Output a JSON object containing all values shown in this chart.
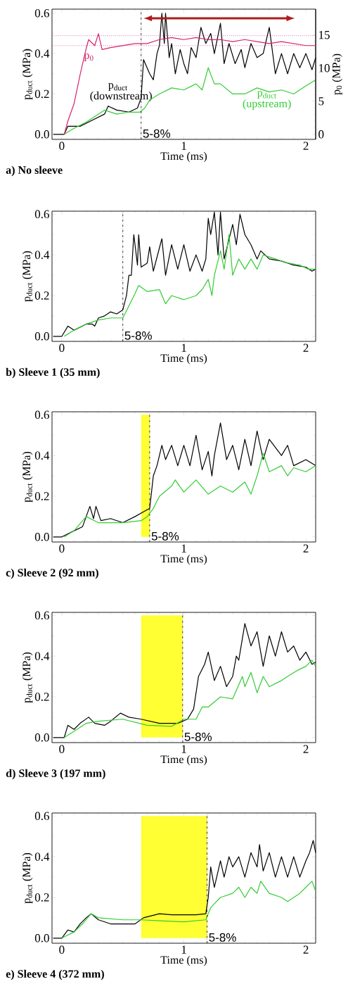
{
  "chart_data": [
    {
      "type": "line",
      "title": "a) No sleeve",
      "xlabel": "Time (ms)",
      "ylabel": "p$_{duct}$ (MPa)",
      "y2label": "p$_{0}$ (MPa)",
      "xlim": [
        -0.08,
        2.08
      ],
      "ylim": [
        -0.025,
        0.62
      ],
      "y2lim": [
        -0.76,
        18.9
      ],
      "xticks": [
        0,
        1,
        2
      ],
      "yticks": [
        {
          "value": 0,
          "label": "0.0"
        },
        {
          "value": 0.2,
          "label": "0.2"
        },
        {
          "value": 0.4,
          "label": "0.4"
        },
        {
          "value": 0.6,
          "label": "0.6"
        }
      ],
      "y2ticks": [
        0,
        5,
        10,
        15
      ],
      "series": [
        {
          "name": "p$_{duct}$ (downstream)",
          "color": "#000000",
          "x": [
            -0.07,
            0.02,
            0.05,
            0.15,
            0.25,
            0.35,
            0.38,
            0.45,
            0.55,
            0.62,
            0.65,
            0.67,
            0.72,
            0.75,
            0.78,
            0.8,
            0.82,
            0.84,
            0.85,
            0.88,
            0.9,
            0.93,
            0.97,
            1.0,
            1.03,
            1.06,
            1.1,
            1.14,
            1.18,
            1.22,
            1.25,
            1.3,
            1.33,
            1.37,
            1.42,
            1.47,
            1.5,
            1.55,
            1.6,
            1.65,
            1.7,
            1.75,
            1.8,
            1.85,
            1.9,
            1.95,
            2.0,
            2.05,
            2.08
          ],
          "values": [
            0,
            0,
            0.04,
            0.04,
            0.07,
            0.1,
            0.14,
            0.12,
            0.11,
            0.13,
            0.18,
            0.37,
            0.3,
            0.27,
            0.4,
            0.44,
            0.6,
            0.45,
            0.6,
            0.38,
            0.45,
            0.3,
            0.42,
            0.35,
            0.3,
            0.43,
            0.38,
            0.53,
            0.45,
            0.5,
            0.4,
            0.55,
            0.35,
            0.45,
            0.35,
            0.42,
            0.33,
            0.45,
            0.38,
            0.4,
            0.53,
            0.3,
            0.4,
            0.3,
            0.4,
            0.33,
            0.4,
            0.32,
            0.38
          ]
        },
        {
          "name": "p$_{duct}$ (upstream)",
          "color": "#33cc33",
          "x": [
            0.02,
            0.1,
            0.2,
            0.3,
            0.35,
            0.45,
            0.55,
            0.64,
            0.68,
            0.72,
            0.8,
            0.9,
            1.0,
            1.1,
            1.15,
            1.2,
            1.25,
            1.3,
            1.4,
            1.5,
            1.6,
            1.7,
            1.8,
            1.9,
            2.0,
            2.08
          ],
          "values": [
            0,
            0.03,
            0.06,
            0.1,
            0.12,
            0.1,
            0.11,
            0.11,
            0.13,
            0.17,
            0.2,
            0.23,
            0.22,
            0.25,
            0.22,
            0.33,
            0.25,
            0.25,
            0.2,
            0.2,
            0.23,
            0.21,
            0.22,
            0.2,
            0.24,
            0.27
          ]
        },
        {
          "name": "p$_{0}$",
          "color": "#d6246e",
          "axis": "y2",
          "x": [
            0.02,
            0.05,
            0.1,
            0.15,
            0.2,
            0.22,
            0.27,
            0.3,
            0.33,
            0.4,
            0.5,
            0.6,
            0.7,
            0.8,
            0.9,
            1.0,
            1.1,
            1.2,
            1.3,
            1.4,
            1.5,
            1.6,
            1.7,
            1.8,
            1.9,
            2.0,
            2.08
          ],
          "values": [
            0,
            2,
            4.6,
            9,
            13,
            14.3,
            13.4,
            15.2,
            12.8,
            13.1,
            13.4,
            13.7,
            13.7,
            14.3,
            14.6,
            14.3,
            14.6,
            14.3,
            14.3,
            14,
            14.3,
            14,
            13.7,
            14,
            13.7,
            13.4,
            13.4
          ]
        }
      ],
      "ref_lines": [
        {
          "axis": "x",
          "value": 0.65,
          "line_style": "dashdot",
          "color": "#000000"
        },
        {
          "axis": "y2",
          "value": 14.9,
          "line_style": "dotted",
          "color": "#d6246e"
        },
        {
          "axis": "y2",
          "value": 13.4,
          "line_style": "dotted",
          "color": "#d6246e"
        }
      ],
      "annotations": [
        "5-8%"
      ]
    },
    {
      "type": "line",
      "title": "b) Sleeve 1 (35 mm)",
      "xlabel": "Time (ms)",
      "ylabel": "p$_{duct}$ (MPa)",
      "xlim": [
        -0.08,
        2.08
      ],
      "ylim": [
        -0.025,
        0.615
      ],
      "xticks": [
        0,
        1,
        2
      ],
      "yticks": [
        {
          "value": 0,
          "label": "0.0"
        },
        {
          "value": 0.2,
          "label": "0.2"
        },
        {
          "value": 0.4,
          "label": "0.4"
        },
        {
          "value": 0.6,
          "label": "0.6"
        }
      ],
      "series": [
        {
          "color": "#000000",
          "x": [
            -0.07,
            0.0,
            0.05,
            0.1,
            0.2,
            0.25,
            0.27,
            0.3,
            0.35,
            0.4,
            0.45,
            0.5,
            0.53,
            0.55,
            0.57,
            0.59,
            0.62,
            0.63,
            0.65,
            0.7,
            0.72,
            0.75,
            0.82,
            0.85,
            0.9,
            0.95,
            1.0,
            1.05,
            1.1,
            1.15,
            1.18,
            1.2,
            1.22,
            1.25,
            1.28,
            1.3,
            1.33,
            1.4,
            1.43,
            1.46,
            1.5,
            1.55,
            1.6,
            1.63,
            1.7,
            1.8,
            1.9,
            2.0,
            2.05,
            2.08
          ],
          "values": [
            0,
            0,
            0.05,
            0.03,
            0.06,
            0.06,
            0.05,
            0.09,
            0.1,
            0.12,
            0.11,
            0.13,
            0.2,
            0.3,
            0.3,
            0.5,
            0.35,
            0.5,
            0.34,
            0.36,
            0.44,
            0.32,
            0.48,
            0.3,
            0.45,
            0.33,
            0.45,
            0.32,
            0.4,
            0.32,
            0.38,
            0.58,
            0.5,
            0.61,
            0.4,
            0.61,
            0.38,
            0.55,
            0.45,
            0.6,
            0.5,
            0.45,
            0.38,
            0.42,
            0.38,
            0.37,
            0.35,
            0.34,
            0.32,
            0.33
          ]
        },
        {
          "color": "#33cc33",
          "x": [
            0.02,
            0.1,
            0.2,
            0.3,
            0.4,
            0.5,
            0.55,
            0.6,
            0.63,
            0.7,
            0.8,
            0.85,
            0.9,
            1.0,
            1.1,
            1.15,
            1.2,
            1.23,
            1.25,
            1.3,
            1.33,
            1.37,
            1.4,
            1.45,
            1.5,
            1.55,
            1.6,
            1.65,
            1.75,
            1.85,
            1.95,
            2.02,
            2.08
          ],
          "values": [
            0,
            0.03,
            0.06,
            0.08,
            0.09,
            0.09,
            0.15,
            0.21,
            0.25,
            0.22,
            0.23,
            0.16,
            0.2,
            0.18,
            0.2,
            0.23,
            0.28,
            0.2,
            0.3,
            0.42,
            0.33,
            0.5,
            0.3,
            0.38,
            0.33,
            0.38,
            0.33,
            0.4,
            0.38,
            0.36,
            0.35,
            0.33,
            0.33
          ]
        }
      ],
      "ref_lines": [
        {
          "axis": "x",
          "value": 0.5,
          "line_style": "dashdot",
          "color": "#000000"
        }
      ],
      "annotations": [
        "5-8%"
      ]
    },
    {
      "type": "line",
      "title": "c) Sleeve 2 (92 mm)",
      "xlabel": "Time (ms)",
      "ylabel": "p$_{duct}$ (MPa)",
      "xlim": [
        -0.08,
        2.08
      ],
      "ylim": [
        -0.025,
        0.615
      ],
      "xticks": [
        0,
        1,
        2
      ],
      "yticks": [
        {
          "value": 0,
          "label": "0.0"
        },
        {
          "value": 0.2,
          "label": "0.2"
        },
        {
          "value": 0.4,
          "label": "0.4"
        },
        {
          "value": 0.6,
          "label": "0.6"
        }
      ],
      "series": [
        {
          "color": "#000000",
          "x": [
            -0.07,
            0.0,
            0.1,
            0.17,
            0.23,
            0.26,
            0.28,
            0.32,
            0.4,
            0.5,
            0.6,
            0.66,
            0.72,
            0.75,
            0.78,
            0.82,
            0.85,
            0.9,
            0.95,
            1.0,
            1.05,
            1.1,
            1.15,
            1.2,
            1.23,
            1.25,
            1.3,
            1.35,
            1.4,
            1.45,
            1.5,
            1.55,
            1.6,
            1.65,
            1.7,
            1.8,
            1.85,
            1.9,
            2.0,
            2.08
          ],
          "values": [
            0,
            0,
            0.03,
            0.05,
            0.15,
            0.09,
            0.15,
            0.08,
            0.09,
            0.07,
            0.1,
            0.12,
            0.14,
            0.3,
            0.35,
            0.45,
            0.38,
            0.45,
            0.35,
            0.45,
            0.35,
            0.5,
            0.33,
            0.42,
            0.3,
            0.4,
            0.56,
            0.38,
            0.45,
            0.33,
            0.48,
            0.35,
            0.52,
            0.38,
            0.48,
            0.4,
            0.45,
            0.35,
            0.38,
            0.35
          ]
        },
        {
          "color": "#33cc33",
          "x": [
            0.02,
            0.1,
            0.2,
            0.3,
            0.5,
            0.65,
            0.7,
            0.75,
            0.8,
            0.9,
            0.93,
            1.0,
            1.1,
            1.2,
            1.3,
            1.4,
            1.5,
            1.55,
            1.6,
            1.65,
            1.7,
            1.8,
            1.85,
            1.9,
            2.0,
            2.08
          ],
          "values": [
            0,
            0.03,
            0.1,
            0.07,
            0.07,
            0.08,
            0.1,
            0.14,
            0.2,
            0.25,
            0.28,
            0.22,
            0.28,
            0.21,
            0.25,
            0.22,
            0.27,
            0.21,
            0.3,
            0.41,
            0.32,
            0.35,
            0.3,
            0.34,
            0.32,
            0.35
          ]
        }
      ],
      "ref_lines": [
        {
          "axis": "x",
          "value": 0.72,
          "line_style": "dashdot",
          "color": "#000000"
        }
      ],
      "annotations": [
        "5-8%"
      ],
      "bands": [
        {
          "axis": "x",
          "from": 0.65,
          "to": 0.72,
          "color": "#ffff33"
        }
      ]
    },
    {
      "type": "line",
      "title": "d) Sleeve 3 (197 mm)",
      "xlabel": "Time (ms)",
      "ylabel": "p$_{duct}$ (MPa)",
      "xlim": [
        -0.08,
        2.08
      ],
      "ylim": [
        -0.025,
        0.615
      ],
      "xticks": [
        0,
        1,
        2
      ],
      "yticks": [
        {
          "value": 0,
          "label": "0.0"
        },
        {
          "value": 0.2,
          "label": "0.2"
        },
        {
          "value": 0.4,
          "label": "0.4"
        },
        {
          "value": 0.6,
          "label": "0.6"
        }
      ],
      "series": [
        {
          "color": "#000000",
          "x": [
            -0.07,
            0.02,
            0.05,
            0.1,
            0.15,
            0.22,
            0.27,
            0.35,
            0.4,
            0.48,
            0.55,
            0.65,
            0.8,
            0.95,
            1.03,
            1.08,
            1.12,
            1.17,
            1.2,
            1.25,
            1.3,
            1.35,
            1.4,
            1.43,
            1.45,
            1.5,
            1.55,
            1.6,
            1.65,
            1.7,
            1.75,
            1.8,
            1.85,
            1.9,
            1.95,
            2.0,
            2.05,
            2.08
          ],
          "values": [
            0,
            0,
            0.06,
            0.04,
            0.07,
            0.1,
            0.07,
            0.06,
            0.08,
            0.12,
            0.1,
            0.09,
            0.07,
            0.07,
            0.09,
            0.14,
            0.3,
            0.36,
            0.42,
            0.28,
            0.35,
            0.25,
            0.3,
            0.4,
            0.38,
            0.56,
            0.45,
            0.52,
            0.35,
            0.5,
            0.4,
            0.52,
            0.42,
            0.45,
            0.38,
            0.42,
            0.36,
            0.37
          ]
        },
        {
          "color": "#33cc33",
          "x": [
            0.02,
            0.1,
            0.2,
            0.3,
            0.5,
            0.7,
            0.9,
            1.0,
            1.1,
            1.15,
            1.2,
            1.3,
            1.4,
            1.48,
            1.5,
            1.55,
            1.6,
            1.65,
            1.7,
            1.8,
            1.85,
            1.93,
            2.0,
            2.05,
            2.08
          ],
          "values": [
            0,
            0.03,
            0.07,
            0.08,
            0.09,
            0.06,
            0.055,
            0.09,
            0.09,
            0.15,
            0.15,
            0.2,
            0.19,
            0.3,
            0.25,
            0.32,
            0.22,
            0.3,
            0.25,
            0.28,
            0.3,
            0.33,
            0.35,
            0.38,
            0.35
          ]
        }
      ],
      "ref_lines": [
        {
          "axis": "x",
          "value": 0.99,
          "line_style": "dashdot",
          "color": "#000000"
        }
      ],
      "annotations": [
        "5-8%"
      ],
      "bands": [
        {
          "axis": "x",
          "from": 0.65,
          "to": 0.99,
          "color": "#ffff33"
        }
      ]
    },
    {
      "type": "line",
      "title": "e) Sleeve 4 (372 mm)",
      "xlabel": "Time (ms)",
      "ylabel": "p$_{duct}$ (MPa)",
      "xlim": [
        -0.08,
        2.08
      ],
      "ylim": [
        -0.025,
        0.615
      ],
      "xticks": [
        0,
        1,
        2
      ],
      "yticks": [
        {
          "value": 0,
          "label": "0.0"
        },
        {
          "value": 0.2,
          "label": "0.2"
        },
        {
          "value": 0.4,
          "label": "0.4"
        },
        {
          "value": 0.6,
          "label": "0.6"
        }
      ],
      "series": [
        {
          "color": "#000000",
          "x": [
            -0.07,
            0.0,
            0.05,
            0.1,
            0.15,
            0.2,
            0.24,
            0.3,
            0.4,
            0.5,
            0.6,
            0.67,
            0.8,
            0.9,
            1.0,
            1.1,
            1.18,
            1.2,
            1.22,
            1.25,
            1.3,
            1.33,
            1.37,
            1.4,
            1.45,
            1.5,
            1.55,
            1.6,
            1.62,
            1.65,
            1.7,
            1.75,
            1.8,
            1.85,
            1.9,
            1.95,
            2.0,
            2.03,
            2.06,
            2.08
          ],
          "values": [
            0,
            0,
            0.04,
            0.03,
            0.07,
            0.1,
            0.12,
            0.09,
            0.07,
            0.07,
            0.07,
            0.1,
            0.12,
            0.115,
            0.115,
            0.115,
            0.12,
            0.2,
            0.35,
            0.25,
            0.38,
            0.3,
            0.4,
            0.35,
            0.4,
            0.3,
            0.42,
            0.35,
            0.46,
            0.33,
            0.42,
            0.3,
            0.4,
            0.3,
            0.4,
            0.3,
            0.38,
            0.42,
            0.48,
            0.42
          ]
        },
        {
          "color": "#33cc33",
          "x": [
            0.0,
            0.1,
            0.17,
            0.24,
            0.3,
            0.5,
            0.65,
            0.8,
            1.0,
            1.18,
            1.22,
            1.3,
            1.4,
            1.45,
            1.5,
            1.55,
            1.6,
            1.63,
            1.7,
            1.8,
            1.85,
            1.9,
            1.95,
            2.0,
            2.05,
            2.08
          ],
          "values": [
            0,
            0.03,
            0.07,
            0.12,
            0.1,
            0.09,
            0.09,
            0.085,
            0.08,
            0.09,
            0.15,
            0.2,
            0.22,
            0.25,
            0.2,
            0.25,
            0.22,
            0.28,
            0.22,
            0.2,
            0.18,
            0.2,
            0.22,
            0.25,
            0.28,
            0.23
          ]
        }
      ],
      "ref_lines": [
        {
          "axis": "x",
          "value": 1.19,
          "line_style": "dashdot",
          "color": "#000000"
        }
      ],
      "annotations": [
        "5-8%"
      ],
      "bands": [
        {
          "axis": "x",
          "from": 0.65,
          "to": 1.19,
          "color": "#ffff33"
        }
      ]
    }
  ]
}
